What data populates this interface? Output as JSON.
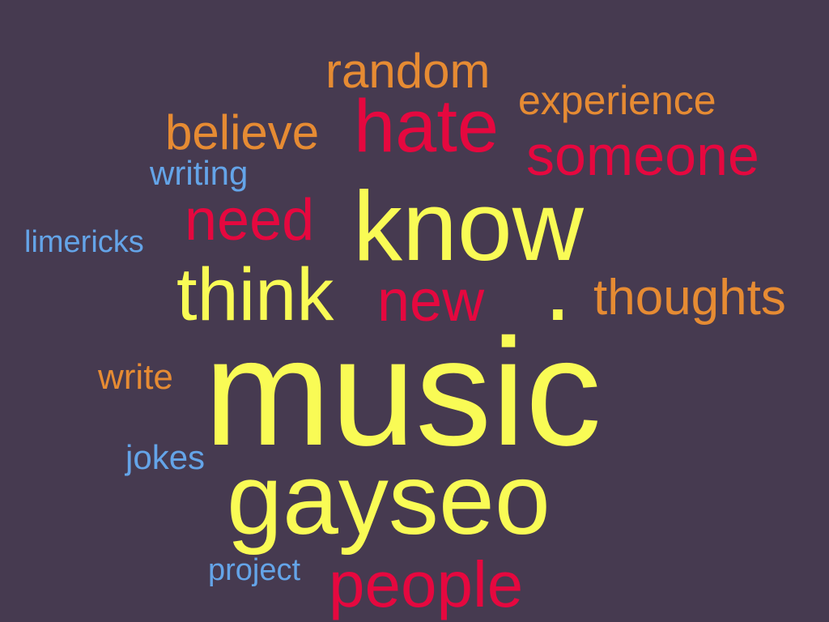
{
  "colors": {
    "background": "#463a50",
    "yellow": "#f9fb55",
    "red": "#e5083f",
    "orange": "#e68b33",
    "blue": "#64a4e8"
  },
  "words": {
    "random": "random",
    "experience": "experience",
    "believe": "believe",
    "hate": "hate",
    "someone": "someone",
    "writing": "writing",
    "need": "need",
    "know": "know",
    "limericks": "limericks",
    "think": "think",
    "new": "new",
    "dot": ".",
    "thoughts": "thoughts",
    "music": "music",
    "write": "write",
    "jokes": "jokes",
    "gayseo": "gayseo",
    "project": "project",
    "people": "people"
  },
  "word_colors": {
    "random": "orange",
    "experience": "orange",
    "believe": "orange",
    "hate": "red",
    "someone": "red",
    "writing": "blue",
    "need": "red",
    "know": "yellow",
    "limericks": "blue",
    "think": "yellow",
    "new": "red",
    "dot": "yellow",
    "thoughts": "orange",
    "music": "yellow",
    "write": "orange",
    "jokes": "blue",
    "gayseo": "yellow",
    "project": "blue",
    "people": "red"
  }
}
